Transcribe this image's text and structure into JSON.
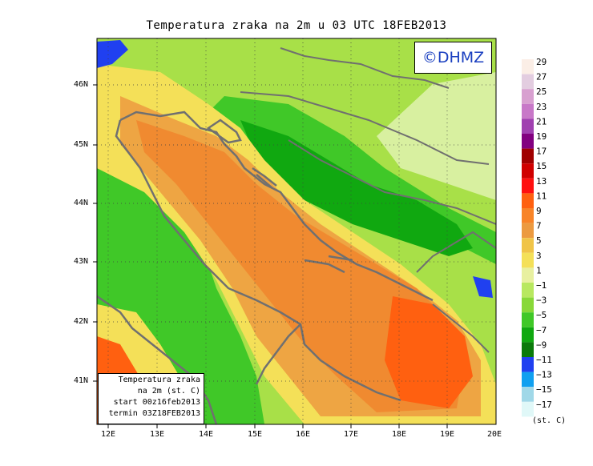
{
  "title": "Temperatura zraka na 2m u 03 UTC 18FEB2013",
  "logo": "©DHMZ",
  "infobox": {
    "line1": "Temperatura zraka",
    "line2": "na 2m (st. C)",
    "line3": "start 00z16feb2013",
    "line4": "termin 03Z18FEB2013"
  },
  "lat_labels": [
    "46N",
    "45N",
    "44N",
    "43N",
    "42N",
    "41N"
  ],
  "lon_labels": [
    "12E",
    "13E",
    "14E",
    "15E",
    "16E",
    "17E",
    "18E",
    "19E",
    "20E"
  ],
  "legend": {
    "units": "(st. C)",
    "labels": [
      "29",
      "27",
      "25",
      "23",
      "21",
      "19",
      "17",
      "15",
      "13",
      "11",
      "9",
      "7",
      "5",
      "3",
      "1",
      "−1",
      "−3",
      "−5",
      "−7",
      "−9",
      "−11",
      "−13",
      "−15",
      "−17"
    ],
    "colors": [
      "#fbeee6",
      "#e3cde0",
      "#d8a0d0",
      "#c878c8",
      "#a040b0",
      "#820080",
      "#a00000",
      "#d00000",
      "#ff1010",
      "#ff6010",
      "#f88428",
      "#ec9a40",
      "#f0c448",
      "#f4e058",
      "#e8f0a0",
      "#b8e860",
      "#88d838",
      "#40c828",
      "#10a810",
      "#0a7a0a",
      "#2040f0",
      "#10a0f0",
      "#a0d8e8",
      "#e0f8f8"
    ]
  },
  "colors": {
    "sea_warm": "#f08a30",
    "sea_hot": "#ff6010",
    "coast_warm": "#f0b848",
    "lowland": "#f4e058",
    "hill": "#a8e048",
    "mountain": "#10a810",
    "cold": "#2040f0",
    "coastline": "#707070"
  }
}
